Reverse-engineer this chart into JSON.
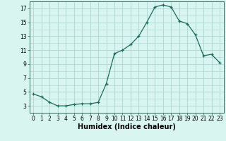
{
  "x_values": [
    0,
    1,
    2,
    3,
    4,
    5,
    6,
    7,
    8,
    9,
    10,
    11,
    12,
    13,
    14,
    15,
    16,
    17,
    18,
    19,
    20,
    21,
    22,
    23
  ],
  "y_values": [
    4.7,
    4.3,
    3.5,
    3.0,
    3.0,
    3.2,
    3.3,
    3.3,
    3.5,
    6.2,
    10.5,
    11.0,
    11.8,
    13.0,
    15.0,
    17.2,
    17.5,
    17.2,
    15.2,
    14.8,
    13.2,
    10.2,
    10.4,
    9.2
  ],
  "line_color": "#1a6b5a",
  "marker": "+",
  "marker_size": 3.5,
  "background_color": "#d8f5f0",
  "grid_color": "#aad6ce",
  "xlabel": "Humidex (Indice chaleur)",
  "xlim": [
    -0.5,
    23.5
  ],
  "ylim": [
    2,
    18
  ],
  "yticks": [
    3,
    5,
    7,
    9,
    11,
    13,
    15,
    17
  ],
  "xticks": [
    0,
    1,
    2,
    3,
    4,
    5,
    6,
    7,
    8,
    9,
    10,
    11,
    12,
    13,
    14,
    15,
    16,
    17,
    18,
    19,
    20,
    21,
    22,
    23
  ],
  "tick_fontsize": 5.5,
  "xlabel_fontsize": 7.0,
  "linewidth": 0.9
}
